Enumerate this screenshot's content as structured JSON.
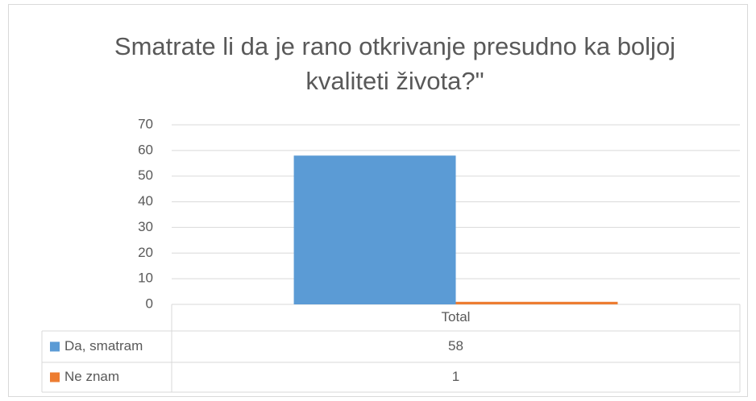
{
  "chart_data": {
    "type": "bar",
    "title": "Smatrate li da je rano otkrivanje presudno ka boljoj kvaliteti života?\"",
    "categories": [
      "Total"
    ],
    "series": [
      {
        "name": "Da, smatram",
        "color": "#5b9bd5",
        "values": [
          58
        ]
      },
      {
        "name": "Ne znam",
        "color": "#ed7d31",
        "values": [
          1
        ]
      }
    ],
    "ylim": [
      0,
      70
    ],
    "yticks": [
      0,
      10,
      20,
      30,
      40,
      50,
      60,
      70
    ],
    "grid": true,
    "data_table": true
  }
}
